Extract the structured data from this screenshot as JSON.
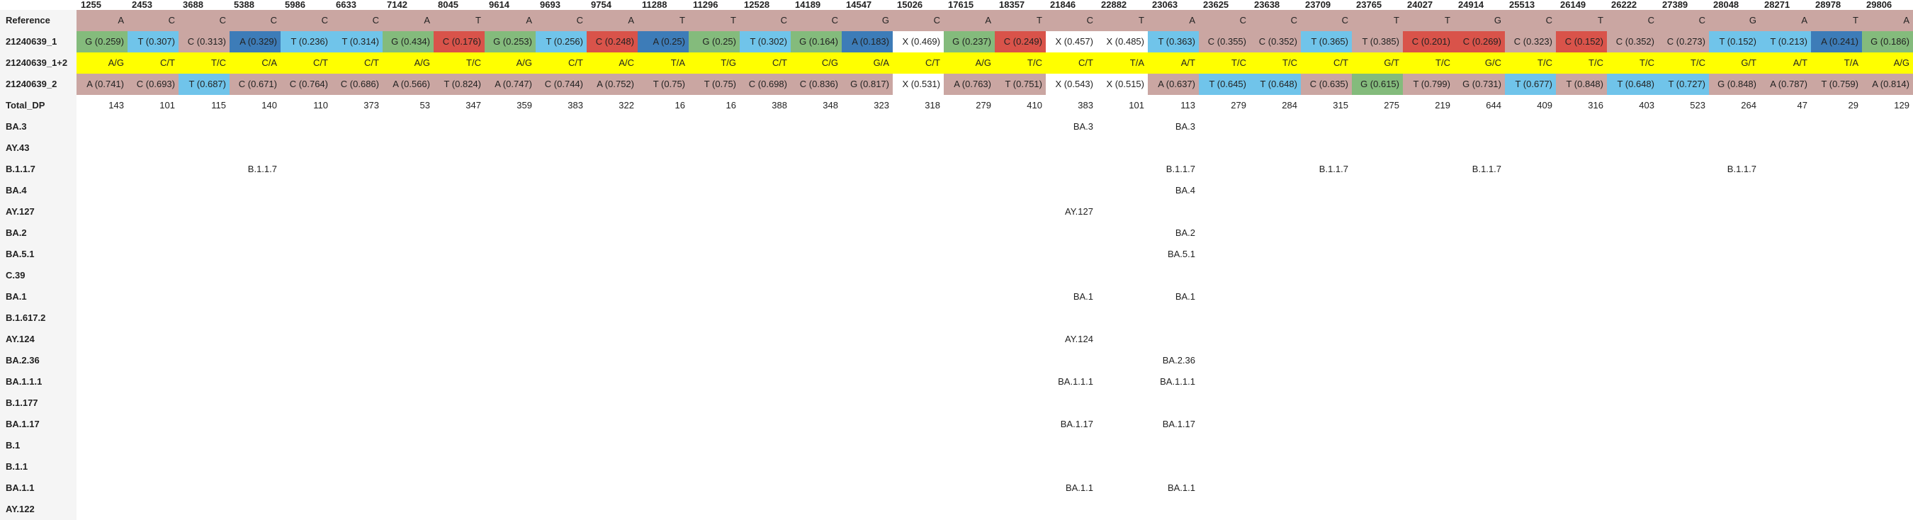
{
  "positions": [
    "1255",
    "2453",
    "3688",
    "5388",
    "5986",
    "6633",
    "7142",
    "8045",
    "9614",
    "9693",
    "9754",
    "11288",
    "11296",
    "12528",
    "14189",
    "14547",
    "15026",
    "17615",
    "18357",
    "21846",
    "22882",
    "23063",
    "23625",
    "23638",
    "23709",
    "23765",
    "24027",
    "24914",
    "25513",
    "26149",
    "26222",
    "27389",
    "28048",
    "28271",
    "28978",
    "29806"
  ],
  "rows": [
    {
      "label": "Reference",
      "type": "ref",
      "cells": [
        [
          "A",
          "C"
        ],
        [
          "C",
          "C"
        ],
        [
          "C",
          "C"
        ],
        [
          "C",
          "C"
        ],
        [
          "C",
          "C"
        ],
        [
          "C",
          "C"
        ],
        [
          "A",
          "C"
        ],
        [
          "T",
          "C"
        ],
        [
          "A",
          "C"
        ],
        [
          "C",
          "C"
        ],
        [
          "A",
          "C"
        ],
        [
          "T",
          "C"
        ],
        [
          "T",
          "C"
        ],
        [
          "C",
          "C"
        ],
        [
          "C",
          "C"
        ],
        [
          "G",
          "C"
        ],
        [
          "C",
          "C"
        ],
        [
          "A",
          "C"
        ],
        [
          "T",
          "C"
        ],
        [
          "C",
          "C"
        ],
        [
          "T",
          "C"
        ],
        [
          "A",
          "C"
        ],
        [
          "C",
          "C"
        ],
        [
          "C",
          "C"
        ],
        [
          "C",
          "C"
        ],
        [
          "T",
          "C"
        ],
        [
          "T",
          "C"
        ],
        [
          "G",
          "C"
        ],
        [
          "C",
          "C"
        ],
        [
          "T",
          "C"
        ],
        [
          "C",
          "C"
        ],
        [
          "C",
          "C"
        ],
        [
          "G",
          "C"
        ],
        [
          "A",
          "C"
        ],
        [
          "T",
          "C"
        ],
        [
          "A",
          "C"
        ]
      ]
    },
    {
      "label": "21240639_1",
      "type": "sample",
      "cells": [
        [
          "G (0.259)",
          "G"
        ],
        [
          "T (0.307)",
          "T"
        ],
        [
          "C (0.313)",
          "C"
        ],
        [
          "A (0.329)",
          "A"
        ],
        [
          "T (0.236)",
          "T"
        ],
        [
          "T (0.314)",
          "T"
        ],
        [
          "G (0.434)",
          "G"
        ],
        [
          "C (0.176)",
          "R"
        ],
        [
          "G (0.253)",
          "G"
        ],
        [
          "T (0.256)",
          "T"
        ],
        [
          "C (0.248)",
          "R"
        ],
        [
          "A (0.25)",
          "A"
        ],
        [
          "G (0.25)",
          "G"
        ],
        [
          "T (0.302)",
          "T"
        ],
        [
          "G (0.164)",
          "G"
        ],
        [
          "A (0.183)",
          "A"
        ],
        [
          "X (0.469)",
          "X"
        ],
        [
          "G (0.237)",
          "G"
        ],
        [
          "C (0.249)",
          "R"
        ],
        [
          "X (0.457)",
          "X"
        ],
        [
          "X (0.485)",
          "X"
        ],
        [
          "T (0.363)",
          "T"
        ],
        [
          "C (0.355)",
          "C"
        ],
        [
          "C (0.352)",
          "C"
        ],
        [
          "T (0.365)",
          "T"
        ],
        [
          "T (0.385)",
          "C"
        ],
        [
          "C (0.201)",
          "R"
        ],
        [
          "C (0.269)",
          "R"
        ],
        [
          "C (0.323)",
          "C"
        ],
        [
          "C (0.152)",
          "R"
        ],
        [
          "C (0.352)",
          "C"
        ],
        [
          "C (0.273)",
          "C"
        ],
        [
          "T (0.152)",
          "T"
        ],
        [
          "T (0.213)",
          "T"
        ],
        [
          "A (0.241)",
          "A"
        ],
        [
          "G (0.186)",
          "G"
        ]
      ]
    },
    {
      "label": "21240639_1+2",
      "type": "mix",
      "cells": [
        [
          "A/G",
          "Y"
        ],
        [
          "C/T",
          "Y"
        ],
        [
          "T/C",
          "Y"
        ],
        [
          "C/A",
          "Y"
        ],
        [
          "C/T",
          "Y"
        ],
        [
          "C/T",
          "Y"
        ],
        [
          "A/G",
          "Y"
        ],
        [
          "T/C",
          "Y"
        ],
        [
          "A/G",
          "Y"
        ],
        [
          "C/T",
          "Y"
        ],
        [
          "A/C",
          "Y"
        ],
        [
          "T/A",
          "Y"
        ],
        [
          "T/G",
          "Y"
        ],
        [
          "C/T",
          "Y"
        ],
        [
          "C/G",
          "Y"
        ],
        [
          "G/A",
          "Y"
        ],
        [
          "C/T",
          "Y"
        ],
        [
          "A/G",
          "Y"
        ],
        [
          "T/C",
          "Y"
        ],
        [
          "C/T",
          "Y"
        ],
        [
          "T/A",
          "Y"
        ],
        [
          "A/T",
          "Y"
        ],
        [
          "T/C",
          "Y"
        ],
        [
          "T/C",
          "Y"
        ],
        [
          "C/T",
          "Y"
        ],
        [
          "G/T",
          "Y"
        ],
        [
          "T/C",
          "Y"
        ],
        [
          "G/C",
          "Y"
        ],
        [
          "T/C",
          "Y"
        ],
        [
          "T/C",
          "Y"
        ],
        [
          "T/C",
          "Y"
        ],
        [
          "T/C",
          "Y"
        ],
        [
          "G/T",
          "Y"
        ],
        [
          "A/T",
          "Y"
        ],
        [
          "T/A",
          "Y"
        ],
        [
          "A/G",
          "Y"
        ]
      ]
    },
    {
      "label": "21240639_2",
      "type": "sample",
      "cells": [
        [
          "A (0.741)",
          "C"
        ],
        [
          "C (0.693)",
          "C"
        ],
        [
          "T (0.687)",
          "T"
        ],
        [
          "C (0.671)",
          "C"
        ],
        [
          "C (0.764)",
          "C"
        ],
        [
          "C (0.686)",
          "C"
        ],
        [
          "A (0.566)",
          "C"
        ],
        [
          "T (0.824)",
          "C"
        ],
        [
          "A (0.747)",
          "C"
        ],
        [
          "C (0.744)",
          "C"
        ],
        [
          "A (0.752)",
          "C"
        ],
        [
          "T (0.75)",
          "C"
        ],
        [
          "T (0.75)",
          "C"
        ],
        [
          "C (0.698)",
          "C"
        ],
        [
          "C (0.836)",
          "C"
        ],
        [
          "G (0.817)",
          "C"
        ],
        [
          "X (0.531)",
          "X"
        ],
        [
          "A (0.763)",
          "C"
        ],
        [
          "T (0.751)",
          "C"
        ],
        [
          "X (0.543)",
          "X"
        ],
        [
          "X (0.515)",
          "X"
        ],
        [
          "A (0.637)",
          "C"
        ],
        [
          "T (0.645)",
          "T"
        ],
        [
          "T (0.648)",
          "T"
        ],
        [
          "C (0.635)",
          "C"
        ],
        [
          "G (0.615)",
          "G"
        ],
        [
          "T (0.799)",
          "C"
        ],
        [
          "G (0.731)",
          "C"
        ],
        [
          "T (0.677)",
          "T"
        ],
        [
          "T (0.848)",
          "C"
        ],
        [
          "T (0.648)",
          "T"
        ],
        [
          "T (0.727)",
          "T"
        ],
        [
          "G (0.848)",
          "C"
        ],
        [
          "A (0.787)",
          "C"
        ],
        [
          "T (0.759)",
          "C"
        ],
        [
          "A (0.814)",
          "C"
        ]
      ]
    },
    {
      "label": "Total_DP",
      "type": "plain",
      "cells": [
        "143",
        "101",
        "115",
        "140",
        "110",
        "373",
        "53",
        "347",
        "359",
        "383",
        "322",
        "16",
        "16",
        "388",
        "348",
        "323",
        "318",
        "279",
        "410",
        "383",
        "101",
        "113",
        "279",
        "284",
        "315",
        "275",
        "219",
        "644",
        "409",
        "316",
        "403",
        "523",
        "264",
        "47",
        "29",
        "129"
      ]
    }
  ],
  "lineages": [
    {
      "label": "BA.3",
      "marks": {
        "19": "BA.3",
        "21": "BA.3"
      }
    },
    {
      "label": "AY.43",
      "marks": {}
    },
    {
      "label": "B.1.1.7",
      "marks": {
        "3": "B.1.1.7",
        "21": "B.1.1.7",
        "24": "B.1.1.7",
        "27": "B.1.1.7",
        "32": "B.1.1.7"
      }
    },
    {
      "label": "BA.4",
      "marks": {
        "21": "BA.4"
      }
    },
    {
      "label": "AY.127",
      "marks": {
        "19": "AY.127"
      }
    },
    {
      "label": "BA.2",
      "marks": {
        "21": "BA.2"
      }
    },
    {
      "label": "BA.5.1",
      "marks": {
        "21": "BA.5.1"
      }
    },
    {
      "label": "C.39",
      "marks": {}
    },
    {
      "label": "BA.1",
      "marks": {
        "19": "BA.1",
        "21": "BA.1"
      }
    },
    {
      "label": "B.1.617.2",
      "marks": {}
    },
    {
      "label": "AY.124",
      "marks": {
        "19": "AY.124"
      }
    },
    {
      "label": "BA.2.36",
      "marks": {
        "21": "BA.2.36"
      }
    },
    {
      "label": "BA.1.1.1",
      "marks": {
        "19": "BA.1.1.1",
        "21": "BA.1.1.1"
      }
    },
    {
      "label": "B.1.177",
      "marks": {}
    },
    {
      "label": "BA.1.17",
      "marks": {
        "19": "BA.1.17",
        "21": "BA.1.17"
      }
    },
    {
      "label": "B.1",
      "marks": {}
    },
    {
      "label": "B.1.1",
      "marks": {}
    },
    {
      "label": "BA.1.1",
      "marks": {
        "19": "BA.1.1",
        "21": "BA.1.1"
      }
    },
    {
      "label": "AY.122",
      "marks": {}
    }
  ],
  "colors": {
    "G": "#84bb7c",
    "T": "#70c4ea",
    "C": "#caa6a2",
    "A": "#3d7cb8",
    "R": "#d9534a",
    "Y": "#ffff00",
    "X": "#ffffff"
  }
}
